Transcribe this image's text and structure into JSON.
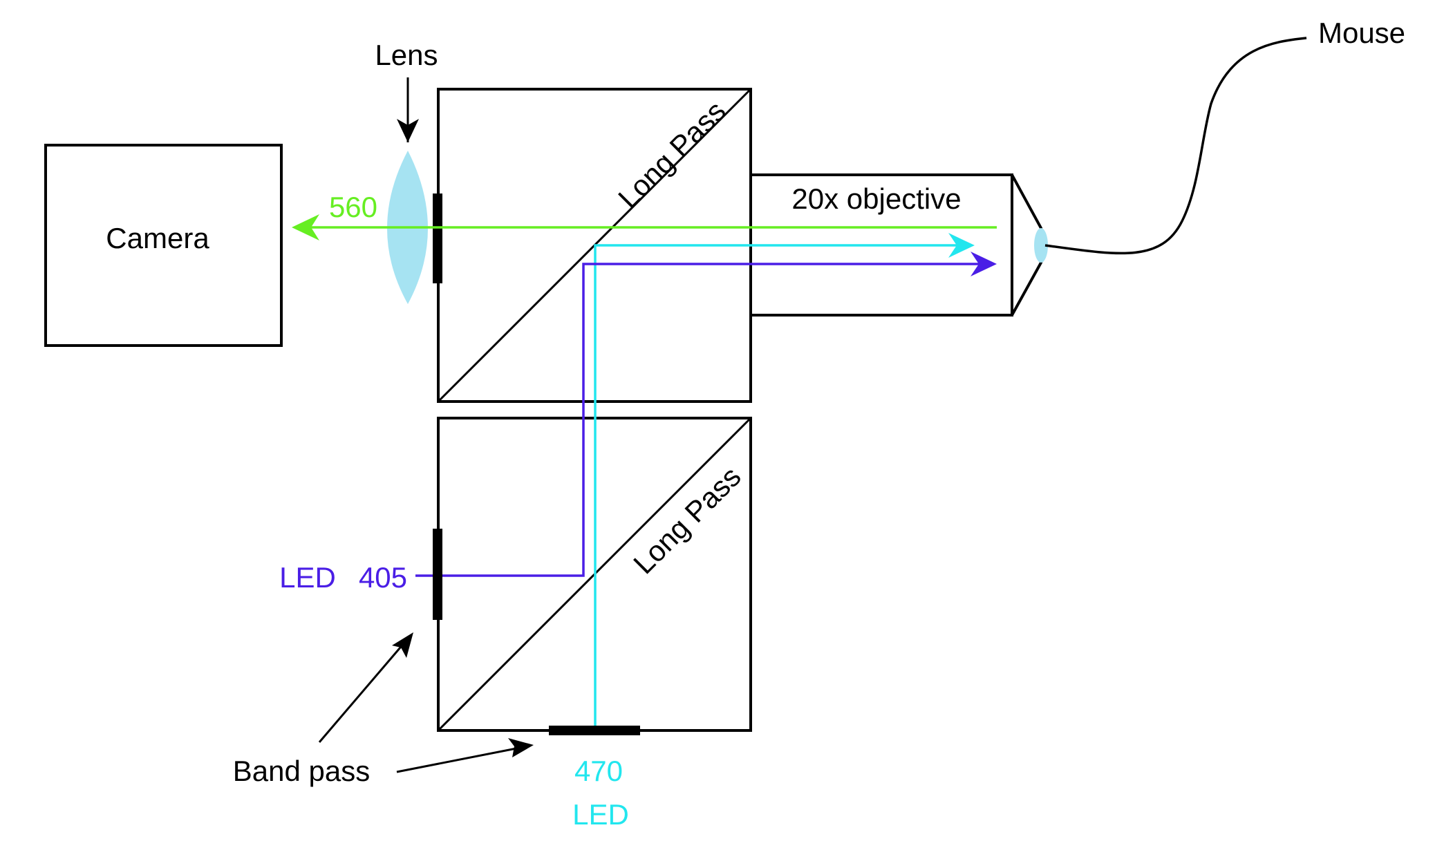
{
  "labels": {
    "lens": "Lens",
    "camera": "Camera",
    "wavelength_560": "560",
    "long_pass_top": "Long Pass",
    "long_pass_bottom": "Long Pass",
    "objective": "20x objective",
    "mouse": "Mouse",
    "led_405_name": "LED",
    "led_405_wavelength": "405",
    "band_pass": "Band pass",
    "led_470_wavelength": "470",
    "led_470_name": "LED"
  },
  "colors": {
    "emission_560": "#66ee22",
    "excitation_470": "#22e6ee",
    "excitation_405": "#4a1ee6",
    "lens_fill": "#a6e3f2",
    "outline": "#000000"
  }
}
